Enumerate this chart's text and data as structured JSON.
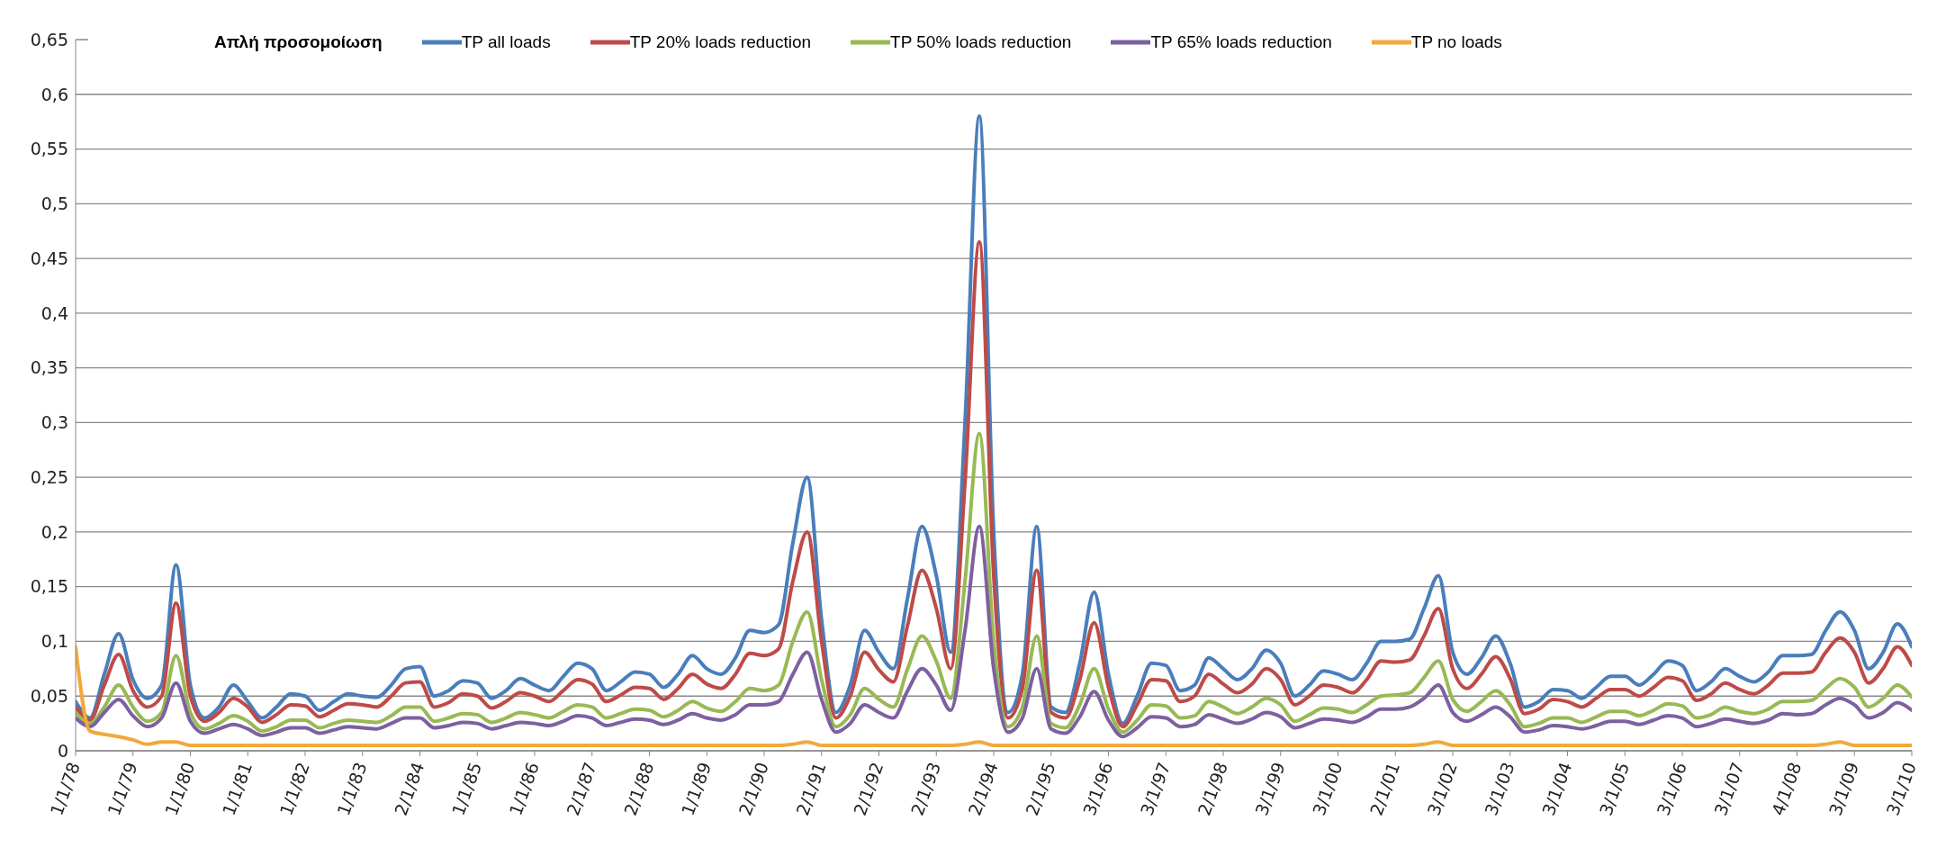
{
  "chart_data": {
    "type": "line",
    "legend_title": "Απλή προσομοίωση",
    "categories": [
      "1/1/78",
      null,
      null,
      null,
      "1/1/79",
      null,
      null,
      null,
      "1/1/80",
      null,
      null,
      null,
      "1/1/81",
      null,
      null,
      null,
      "1/1/82",
      null,
      null,
      null,
      "1/1/83",
      null,
      null,
      null,
      "2/1/84",
      null,
      null,
      null,
      "1/1/85",
      null,
      null,
      null,
      "1/1/86",
      null,
      null,
      null,
      "2/1/87",
      null,
      null,
      null,
      "2/1/88",
      null,
      null,
      null,
      "1/1/89",
      null,
      null,
      null,
      "2/1/90",
      null,
      null,
      null,
      "2/1/91",
      null,
      null,
      null,
      "2/1/92",
      null,
      null,
      null,
      "2/1/93",
      null,
      null,
      null,
      "2/1/94",
      null,
      null,
      null,
      "2/1/95",
      null,
      null,
      null,
      "3/1/96",
      null,
      null,
      null,
      "3/1/97",
      null,
      null,
      null,
      "2/1/98",
      null,
      null,
      null,
      "3/1/99",
      null,
      null,
      null,
      "3/1/00",
      null,
      null,
      null,
      "2/1/01",
      null,
      null,
      null,
      "3/1/02",
      null,
      null,
      null,
      "3/1/03",
      null,
      null,
      null,
      "3/1/04",
      null,
      null,
      null,
      "3/1/05",
      null,
      null,
      null,
      "3/1/06",
      null,
      null,
      null,
      "3/1/07",
      null,
      null,
      null,
      "4/1/08",
      null,
      null,
      null,
      "3/1/09",
      null,
      null,
      null,
      "3/1/10"
    ],
    "series": [
      {
        "name": "TP all loads",
        "color": "#4a7ebb",
        "values": [
          0.045,
          0.03,
          0.07,
          0.107,
          0.065,
          0.048,
          0.06,
          0.17,
          0.06,
          0.03,
          0.04,
          0.06,
          0.045,
          0.03,
          0.04,
          0.052,
          0.05,
          0.037,
          0.045,
          0.052,
          0.05,
          0.049,
          0.06,
          0.075,
          0.077,
          0.05,
          0.055,
          0.064,
          0.062,
          0.048,
          0.055,
          0.066,
          0.06,
          0.055,
          0.068,
          0.08,
          0.075,
          0.055,
          0.063,
          0.072,
          0.07,
          0.058,
          0.07,
          0.087,
          0.075,
          0.07,
          0.085,
          0.11,
          0.108,
          0.115,
          0.19,
          0.25,
          0.12,
          0.035,
          0.06,
          0.11,
          0.09,
          0.075,
          0.14,
          0.205,
          0.16,
          0.09,
          0.3,
          0.58,
          0.2,
          0.035,
          0.07,
          0.205,
          0.04,
          0.035,
          0.08,
          0.145,
          0.07,
          0.025,
          0.05,
          0.08,
          0.078,
          0.055,
          0.06,
          0.085,
          0.075,
          0.065,
          0.075,
          0.092,
          0.08,
          0.05,
          0.06,
          0.073,
          0.07,
          0.065,
          0.08,
          0.1,
          0.1,
          0.102,
          0.13,
          0.16,
          0.09,
          0.07,
          0.085,
          0.105,
          0.08,
          0.04,
          0.045,
          0.056,
          0.055,
          0.048,
          0.058,
          0.068,
          0.068,
          0.06,
          0.07,
          0.082,
          0.078,
          0.055,
          0.063,
          0.075,
          0.068,
          0.063,
          0.072,
          0.087,
          0.087,
          0.088,
          0.11,
          0.127,
          0.11,
          0.075,
          0.09,
          0.116,
          0.095
        ]
      },
      {
        "name": "TP 20% loads reduction",
        "color": "#be4b48",
        "values": [
          0.04,
          0.028,
          0.06,
          0.088,
          0.055,
          0.04,
          0.05,
          0.135,
          0.05,
          0.027,
          0.035,
          0.048,
          0.04,
          0.026,
          0.033,
          0.042,
          0.041,
          0.031,
          0.037,
          0.043,
          0.042,
          0.04,
          0.05,
          0.062,
          0.063,
          0.04,
          0.044,
          0.052,
          0.05,
          0.039,
          0.045,
          0.053,
          0.05,
          0.045,
          0.055,
          0.065,
          0.061,
          0.045,
          0.051,
          0.058,
          0.057,
          0.047,
          0.057,
          0.07,
          0.061,
          0.057,
          0.07,
          0.089,
          0.087,
          0.093,
          0.155,
          0.2,
          0.1,
          0.03,
          0.05,
          0.09,
          0.074,
          0.063,
          0.115,
          0.165,
          0.13,
          0.075,
          0.245,
          0.465,
          0.16,
          0.03,
          0.057,
          0.165,
          0.035,
          0.03,
          0.065,
          0.117,
          0.058,
          0.022,
          0.042,
          0.065,
          0.064,
          0.045,
          0.05,
          0.07,
          0.061,
          0.053,
          0.061,
          0.075,
          0.065,
          0.042,
          0.05,
          0.06,
          0.058,
          0.053,
          0.065,
          0.082,
          0.081,
          0.083,
          0.105,
          0.13,
          0.075,
          0.057,
          0.07,
          0.086,
          0.066,
          0.034,
          0.038,
          0.047,
          0.045,
          0.04,
          0.048,
          0.056,
          0.056,
          0.05,
          0.058,
          0.067,
          0.064,
          0.046,
          0.052,
          0.062,
          0.056,
          0.052,
          0.06,
          0.071,
          0.071,
          0.072,
          0.09,
          0.103,
          0.09,
          0.062,
          0.075,
          0.095,
          0.078
        ]
      },
      {
        "name": "TP 50% loads reduction",
        "color": "#98b954",
        "values": [
          0.035,
          0.025,
          0.04,
          0.06,
          0.04,
          0.027,
          0.035,
          0.087,
          0.035,
          0.02,
          0.025,
          0.032,
          0.027,
          0.018,
          0.022,
          0.028,
          0.028,
          0.021,
          0.025,
          0.028,
          0.027,
          0.026,
          0.032,
          0.04,
          0.04,
          0.027,
          0.03,
          0.034,
          0.033,
          0.026,
          0.03,
          0.035,
          0.033,
          0.03,
          0.036,
          0.042,
          0.04,
          0.03,
          0.034,
          0.038,
          0.037,
          0.031,
          0.037,
          0.045,
          0.039,
          0.036,
          0.045,
          0.057,
          0.055,
          0.06,
          0.1,
          0.127,
          0.065,
          0.022,
          0.033,
          0.057,
          0.047,
          0.04,
          0.075,
          0.105,
          0.082,
          0.048,
          0.155,
          0.29,
          0.1,
          0.022,
          0.04,
          0.105,
          0.025,
          0.021,
          0.042,
          0.075,
          0.038,
          0.017,
          0.028,
          0.042,
          0.041,
          0.03,
          0.032,
          0.045,
          0.04,
          0.034,
          0.04,
          0.048,
          0.042,
          0.027,
          0.033,
          0.039,
          0.038,
          0.035,
          0.042,
          0.05,
          0.051,
          0.053,
          0.067,
          0.082,
          0.047,
          0.036,
          0.045,
          0.055,
          0.042,
          0.022,
          0.025,
          0.03,
          0.03,
          0.026,
          0.031,
          0.036,
          0.036,
          0.032,
          0.037,
          0.043,
          0.041,
          0.03,
          0.033,
          0.04,
          0.036,
          0.034,
          0.038,
          0.045,
          0.045,
          0.046,
          0.057,
          0.066,
          0.058,
          0.04,
          0.048,
          0.06,
          0.049
        ]
      },
      {
        "name": "TP 65% loads reduction",
        "color": "#7d60a0",
        "values": [
          0.03,
          0.022,
          0.035,
          0.047,
          0.032,
          0.022,
          0.03,
          0.062,
          0.027,
          0.016,
          0.02,
          0.024,
          0.02,
          0.014,
          0.017,
          0.021,
          0.021,
          0.016,
          0.019,
          0.022,
          0.021,
          0.02,
          0.025,
          0.03,
          0.03,
          0.021,
          0.023,
          0.026,
          0.025,
          0.02,
          0.023,
          0.026,
          0.025,
          0.023,
          0.027,
          0.032,
          0.03,
          0.023,
          0.026,
          0.029,
          0.028,
          0.024,
          0.028,
          0.034,
          0.03,
          0.028,
          0.033,
          0.042,
          0.042,
          0.045,
          0.07,
          0.09,
          0.047,
          0.017,
          0.025,
          0.042,
          0.035,
          0.03,
          0.055,
          0.075,
          0.06,
          0.037,
          0.11,
          0.205,
          0.075,
          0.017,
          0.03,
          0.075,
          0.02,
          0.016,
          0.031,
          0.054,
          0.028,
          0.013,
          0.021,
          0.031,
          0.03,
          0.022,
          0.024,
          0.033,
          0.029,
          0.025,
          0.029,
          0.035,
          0.031,
          0.021,
          0.025,
          0.029,
          0.028,
          0.026,
          0.031,
          0.038,
          0.038,
          0.04,
          0.048,
          0.06,
          0.035,
          0.027,
          0.033,
          0.04,
          0.031,
          0.017,
          0.019,
          0.023,
          0.022,
          0.02,
          0.023,
          0.027,
          0.027,
          0.024,
          0.028,
          0.032,
          0.03,
          0.022,
          0.025,
          0.029,
          0.027,
          0.025,
          0.028,
          0.034,
          0.033,
          0.034,
          0.042,
          0.048,
          0.042,
          0.03,
          0.035,
          0.044,
          0.037
        ]
      },
      {
        "name": "TP no loads",
        "color": "#f2a93b",
        "values": [
          0.095,
          0.018,
          0.015,
          0.013,
          0.01,
          0.006,
          0.008,
          0.008,
          0.005,
          0.005,
          0.005,
          0.005,
          0.005,
          0.005,
          0.005,
          0.005,
          0.005,
          0.005,
          0.005,
          0.005,
          0.005,
          0.005,
          0.005,
          0.005,
          0.005,
          0.005,
          0.005,
          0.005,
          0.005,
          0.005,
          0.005,
          0.005,
          0.005,
          0.005,
          0.005,
          0.005,
          0.005,
          0.005,
          0.005,
          0.005,
          0.005,
          0.005,
          0.005,
          0.005,
          0.005,
          0.005,
          0.005,
          0.005,
          0.005,
          0.005,
          0.006,
          0.008,
          0.005,
          0.005,
          0.005,
          0.005,
          0.005,
          0.005,
          0.005,
          0.005,
          0.005,
          0.005,
          0.006,
          0.008,
          0.005,
          0.005,
          0.005,
          0.005,
          0.005,
          0.005,
          0.005,
          0.005,
          0.005,
          0.005,
          0.005,
          0.005,
          0.005,
          0.005,
          0.005,
          0.005,
          0.005,
          0.005,
          0.005,
          0.005,
          0.005,
          0.005,
          0.005,
          0.005,
          0.005,
          0.005,
          0.005,
          0.005,
          0.005,
          0.005,
          0.006,
          0.008,
          0.005,
          0.005,
          0.005,
          0.005,
          0.005,
          0.005,
          0.005,
          0.005,
          0.005,
          0.005,
          0.005,
          0.005,
          0.005,
          0.005,
          0.005,
          0.005,
          0.005,
          0.005,
          0.005,
          0.005,
          0.005,
          0.005,
          0.005,
          0.005,
          0.005,
          0.005,
          0.006,
          0.008,
          0.005,
          0.005,
          0.005,
          0.005,
          0.005
        ]
      }
    ],
    "ylim": [
      0,
      0.65
    ],
    "yticks": [
      {
        "value": 0,
        "label": "0"
      },
      {
        "value": 0.05,
        "label": "0,05"
      },
      {
        "value": 0.1,
        "label": "0,1"
      },
      {
        "value": 0.15,
        "label": "0,15"
      },
      {
        "value": 0.2,
        "label": "0,2"
      },
      {
        "value": 0.25,
        "label": "0,25"
      },
      {
        "value": 0.3,
        "label": "0,3"
      },
      {
        "value": 0.35,
        "label": "0,35"
      },
      {
        "value": 0.4,
        "label": "0,4"
      },
      {
        "value": 0.45,
        "label": "0,45"
      },
      {
        "value": 0.5,
        "label": "0,5"
      },
      {
        "value": 0.55,
        "label": "0,55"
      },
      {
        "value": 0.6,
        "label": "0,6"
      },
      {
        "value": 0.65,
        "label": "0,65"
      }
    ],
    "grid": "y",
    "legend": "top",
    "marker": "none",
    "line_style": "solid"
  }
}
